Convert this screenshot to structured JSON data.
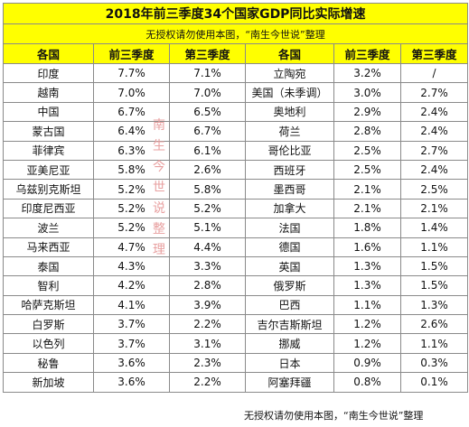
{
  "title": "2018年前三季度34个国家GDP同比实际增速",
  "subtitle": "无授权请勿使用本图，“南生今世说”整理",
  "headers": [
    "各国",
    "前三季度",
    "第三季度",
    "各国",
    "前三季度",
    "第三季度"
  ],
  "rows": [
    [
      "印度",
      "7.7%",
      "7.1%",
      "立陶宛",
      "3.2%",
      "/"
    ],
    [
      "越南",
      "7.0%",
      "7.0%",
      "美国（未季调）",
      "3.0%",
      "2.7%"
    ],
    [
      "中国",
      "6.7%",
      "6.5%",
      "奥地利",
      "2.9%",
      "2.4%"
    ],
    [
      "蒙古国",
      "6.4%",
      "6.7%",
      "荷兰",
      "2.8%",
      "2.4%"
    ],
    [
      "菲律宾",
      "6.3%",
      "6.1%",
      "哥伦比亚",
      "2.5%",
      "2.7%"
    ],
    [
      "亚美尼亚",
      "5.8%",
      "2.6%",
      "西班牙",
      "2.5%",
      "2.4%"
    ],
    [
      "乌兹别克斯坦",
      "5.2%",
      "5.8%",
      "墨西哥",
      "2.1%",
      "2.5%"
    ],
    [
      "印度尼西亚",
      "5.2%",
      "5.2%",
      "加拿大",
      "2.1%",
      "2.1%"
    ],
    [
      "波兰",
      "5.2%",
      "5.1%",
      "法国",
      "1.8%",
      "1.4%"
    ],
    [
      "马来西亚",
      "4.7%",
      "4.4%",
      "德国",
      "1.6%",
      "1.1%"
    ],
    [
      "泰国",
      "4.3%",
      "3.3%",
      "英国",
      "1.3%",
      "1.5%"
    ],
    [
      "智利",
      "4.2%",
      "2.8%",
      "俄罗斯",
      "1.3%",
      "1.5%"
    ],
    [
      "哈萨克斯坦",
      "4.1%",
      "3.9%",
      "巴西",
      "1.1%",
      "1.3%"
    ],
    [
      "白罗斯",
      "3.7%",
      "2.2%",
      "吉尔吉斯斯坦",
      "1.2%",
      "2.6%"
    ],
    [
      "以色列",
      "3.7%",
      "3.1%",
      "挪威",
      "1.2%",
      "1.1%"
    ],
    [
      "秘鲁",
      "3.6%",
      "2.3%",
      "日本",
      "0.9%",
      "0.3%"
    ],
    [
      "新加坡",
      "3.6%",
      "2.2%",
      "阿塞拜疆",
      "0.8%",
      "0.1%"
    ]
  ],
  "watermark": "南生今世说  整理",
  "footer": "无授权请勿使用本图，“南生今世说”整理"
}
